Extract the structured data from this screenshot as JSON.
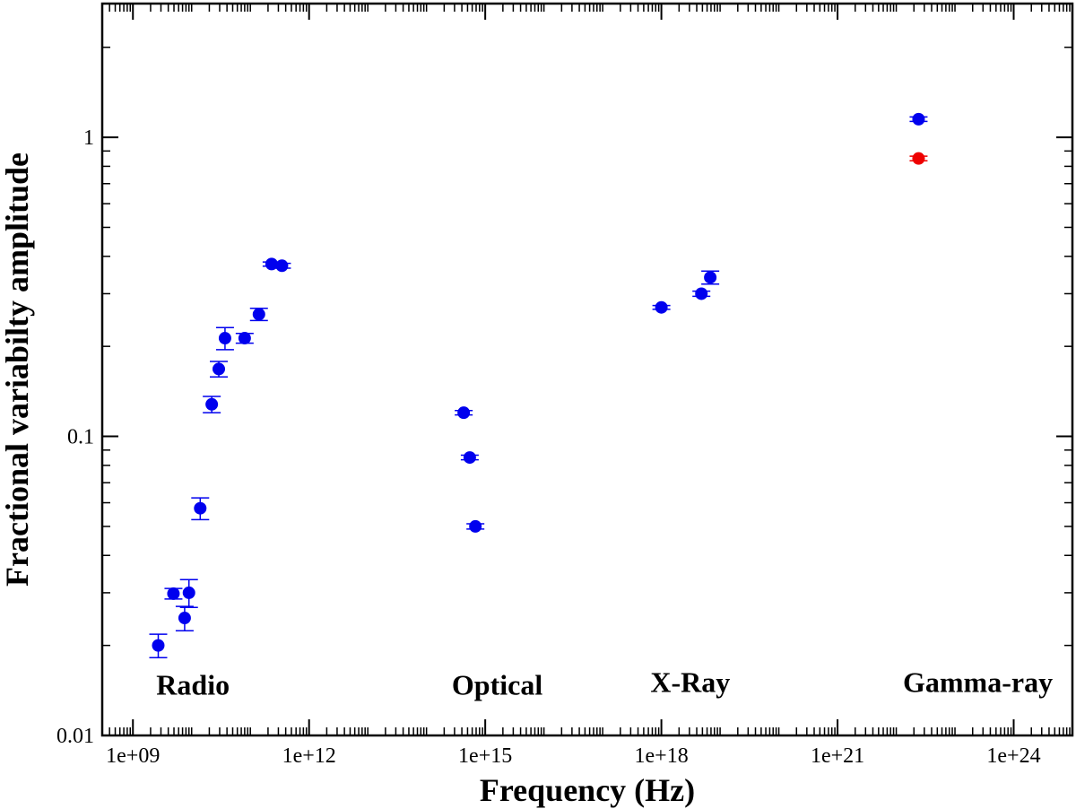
{
  "chart_data": {
    "type": "scatter",
    "title": "",
    "xlabel": "Frequency (Hz)",
    "ylabel": "Fractional variabilty amplitude",
    "x_scale": "log",
    "y_scale": "log",
    "xlim": [
      300000000.0,
      1e+25
    ],
    "ylim": [
      0.01,
      2.8
    ],
    "grid": false,
    "x_ticks": [
      {
        "value": 1000000000.0,
        "label": "1e+09"
      },
      {
        "value": 1000000000000.0,
        "label": "1e+12"
      },
      {
        "value": 1000000000000000.0,
        "label": "1e+15"
      },
      {
        "value": 1e+18,
        "label": "1e+18"
      },
      {
        "value": 1e+21,
        "label": "1e+21"
      },
      {
        "value": 1e+24,
        "label": "1e+24"
      }
    ],
    "y_ticks": [
      {
        "value": 0.01,
        "label": "0.01"
      },
      {
        "value": 0.1,
        "label": "0.1"
      },
      {
        "value": 1,
        "label": "1"
      }
    ],
    "region_labels": [
      {
        "text": "Radio",
        "x": 2500000000.0,
        "y": 0.0137
      },
      {
        "text": "Optical",
        "x": 270000000000000.0,
        "y": 0.0137
      },
      {
        "text": "X-Ray",
        "x": 6.5e+17,
        "y": 0.014
      },
      {
        "text": "Gamma-ray",
        "x": 1.3e+22,
        "y": 0.014
      }
    ],
    "colors": {
      "primary": "#0000ee",
      "highlight": "#ee0000"
    },
    "series": [
      {
        "color": "#0000ee",
        "points": [
          {
            "x": 2700000000.0,
            "y": 0.02,
            "err": 0.0018
          },
          {
            "x": 4900000000.0,
            "y": 0.0298,
            "err": 0.0012
          },
          {
            "x": 7600000000.0,
            "y": 0.0247,
            "err": 0.0023
          },
          {
            "x": 9000000000.0,
            "y": 0.03,
            "err": 0.0032
          },
          {
            "x": 14000000000.0,
            "y": 0.0575,
            "err": 0.0048
          },
          {
            "x": 22000000000.0,
            "y": 0.128,
            "err": 0.008
          },
          {
            "x": 29000000000.0,
            "y": 0.168,
            "err": 0.01
          },
          {
            "x": 37000000000.0,
            "y": 0.213,
            "err": 0.018
          },
          {
            "x": 80000000000.0,
            "y": 0.213,
            "err": 0.008
          },
          {
            "x": 140000000000.0,
            "y": 0.256,
            "err": 0.012
          },
          {
            "x": 230000000000.0,
            "y": 0.377,
            "err": 0.006
          },
          {
            "x": 345000000000.0,
            "y": 0.372,
            "err": 0.007
          },
          {
            "x": 430000000000000.0,
            "y": 0.12,
            "err": 0.002
          },
          {
            "x": 545000000000000.0,
            "y": 0.085,
            "err": 0.0015
          },
          {
            "x": 680000000000000.0,
            "y": 0.05,
            "err": 0.001
          },
          {
            "x": 1e+18,
            "y": 0.27,
            "err": 0.004
          },
          {
            "x": 4.8e+18,
            "y": 0.3,
            "err": 0.006
          },
          {
            "x": 6.8e+18,
            "y": 0.34,
            "err": 0.017
          },
          {
            "x": 2.4e+22,
            "y": 1.15,
            "err": 0.02
          }
        ]
      },
      {
        "color": "#ee0000",
        "points": [
          {
            "x": 2.4e+22,
            "y": 0.85,
            "err": 0.015
          }
        ]
      }
    ]
  }
}
